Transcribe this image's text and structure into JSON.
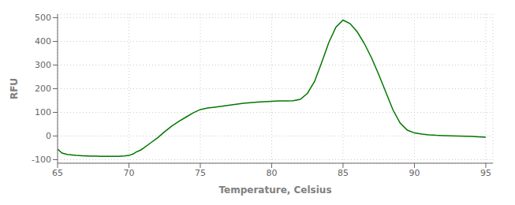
{
  "chart_data": {
    "type": "line",
    "xlabel": "Temperature, Celsius",
    "ylabel": "RFU",
    "color": "#007700",
    "grid": true,
    "xlim": [
      65,
      95.5
    ],
    "ylim": [
      -115,
      515
    ],
    "xticks": [
      65,
      70,
      75,
      80,
      85,
      90,
      95
    ],
    "yticks": [
      -100,
      0,
      100,
      200,
      300,
      400,
      500
    ],
    "x": [
      65.0,
      65.3,
      65.7,
      66.0,
      66.3,
      66.7,
      67.0,
      67.3,
      67.7,
      68.0,
      68.3,
      68.7,
      69.0,
      69.3,
      69.7,
      70.0,
      70.3,
      70.5,
      70.8,
      71.0,
      71.5,
      72.0,
      72.5,
      73.0,
      73.5,
      74.0,
      74.5,
      75.0,
      75.5,
      76.0,
      76.5,
      77.0,
      77.5,
      78.0,
      78.5,
      79.0,
      79.5,
      80.0,
      80.5,
      81.0,
      81.5,
      82.0,
      82.5,
      83.0,
      83.5,
      84.0,
      84.5,
      85.0,
      85.5,
      86.0,
      86.5,
      87.0,
      87.5,
      88.0,
      88.5,
      89.0,
      89.5,
      90.0,
      90.5,
      91.0,
      91.5,
      92.0,
      92.5,
      93.0,
      93.5,
      94.0,
      94.5,
      95.0
    ],
    "values": [
      -55,
      -72,
      -78,
      -80,
      -82,
      -83,
      -84,
      -85,
      -85,
      -86,
      -86,
      -86,
      -86,
      -86,
      -84,
      -82,
      -76,
      -68,
      -60,
      -52,
      -30,
      -8,
      18,
      42,
      62,
      80,
      98,
      112,
      118,
      122,
      126,
      130,
      134,
      138,
      141,
      143,
      145,
      147,
      148,
      148,
      149,
      155,
      180,
      230,
      310,
      395,
      460,
      490,
      475,
      440,
      390,
      330,
      260,
      185,
      110,
      55,
      25,
      13,
      8,
      5,
      3,
      2,
      1,
      0,
      -1,
      -2,
      -3,
      -5
    ]
  }
}
